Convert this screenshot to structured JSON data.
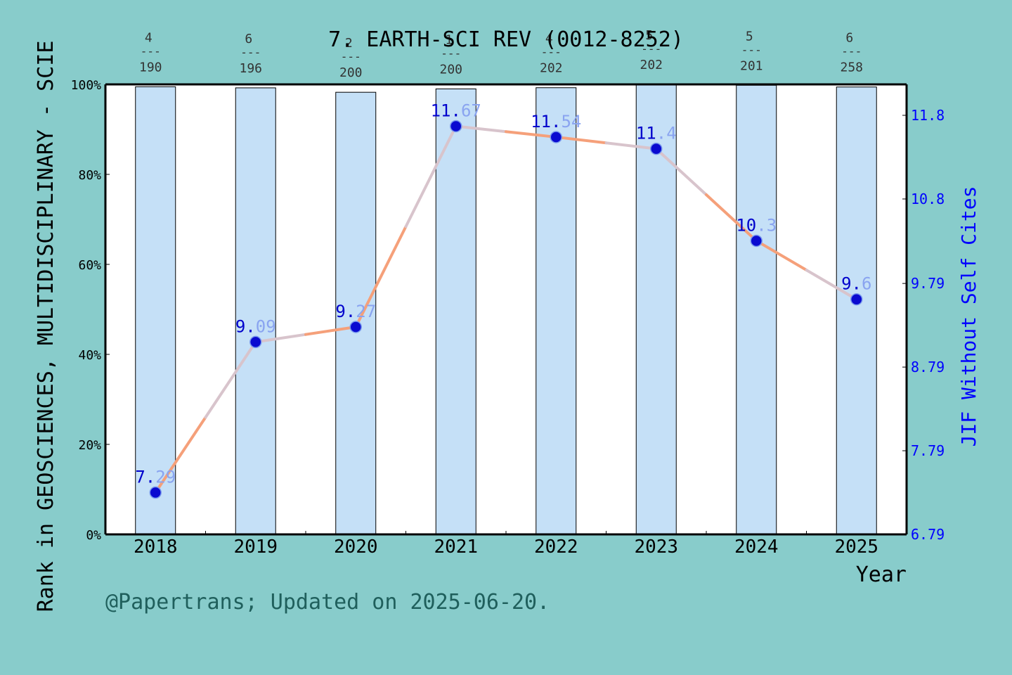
{
  "chart_data": {
    "type": "bar+line",
    "title": "7. EARTH-SCI REV (0012-8252)",
    "xlabel": "Year",
    "ylabel_left": "Rank in GEOSCIENCES, MULTIDISCIPLINARY - SCIE",
    "ylabel_right": "JIF Without Self Cites",
    "footer": "@Papertrans; Updated on 2025-06-20.",
    "categories": [
      "2018",
      "2019",
      "2020",
      "2021",
      "2022",
      "2023",
      "2024",
      "2025"
    ],
    "rank_labels": [
      {
        "rank": "4",
        "total": "190"
      },
      {
        "rank": "6",
        "total": "196"
      },
      {
        "rank": "2",
        "total": "200"
      },
      {
        "rank": "1",
        "total": "200"
      },
      {
        "rank": "4",
        "total": "202"
      },
      {
        "rank": "5",
        "total": "202"
      },
      {
        "rank": "5",
        "total": "201"
      },
      {
        "rank": "6",
        "total": "258"
      }
    ],
    "rank_separator": "---",
    "series": [
      {
        "name": "Rank percentile",
        "kind": "bar",
        "axis": "left",
        "values": [
          0.9947,
          0.9923,
          0.9825,
          0.99,
          0.9926,
          1.0,
          0.998,
          0.9942
        ],
        "color": "#c5e0f7"
      },
      {
        "name": "JIF Without Self Cites",
        "kind": "line",
        "axis": "right",
        "values": [
          7.29,
          9.09,
          9.27,
          11.67,
          11.54,
          11.4,
          10.3,
          9.6
        ],
        "labels": [
          "7.29",
          "9.09",
          "9.27",
          "11.67",
          "11.54",
          "11.4",
          "10.3",
          "9.6"
        ],
        "color": "#f5a07a"
      }
    ],
    "yticks_left": [
      "0%",
      "20%",
      "40%",
      "60%",
      "80%",
      "100%"
    ],
    "ylim_left": [
      0,
      1
    ],
    "yticks_right": [
      6.79,
      7.79,
      8.79,
      9.79,
      10.8,
      11.8
    ],
    "yticks_right_labels": [
      "6.79",
      "7.79",
      "8.79",
      "9.79",
      "10.8",
      "11.8"
    ],
    "ylim_right": [
      6.79,
      12.17
    ],
    "legend": "none",
    "grid": false,
    "colors": {
      "background": "#88cccb",
      "plot_bg": "#ffffff",
      "line": "#f5a07a",
      "marker": "#0a0ad0",
      "right_axis": "#0000ff",
      "footer": "#1f5f5c"
    }
  }
}
